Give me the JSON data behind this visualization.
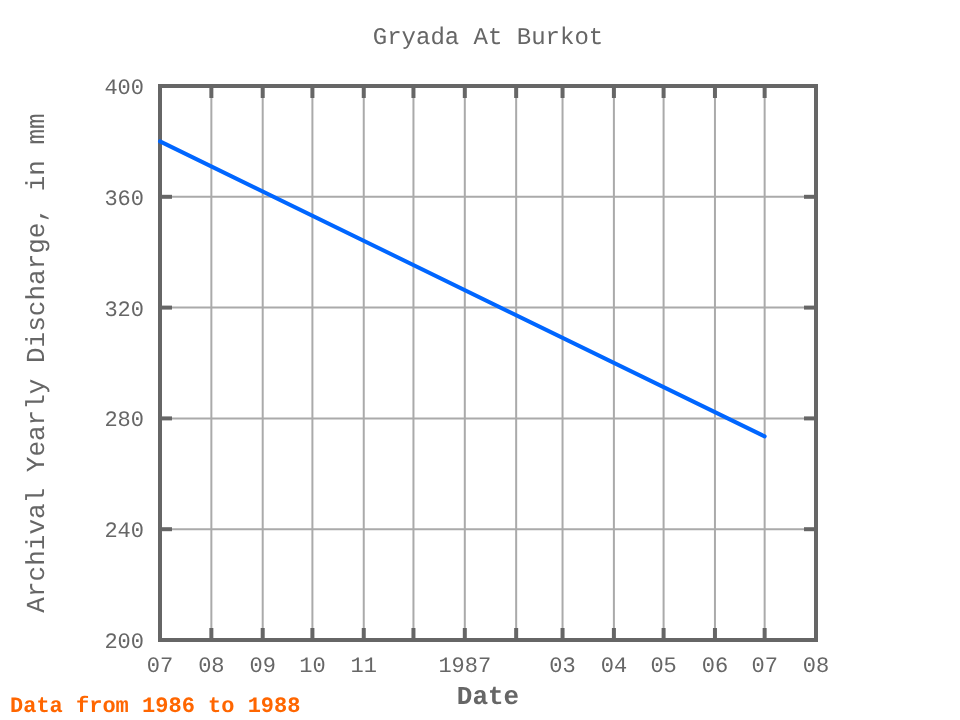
{
  "chart_data": {
    "type": "line",
    "title": "Gryada At Burkot",
    "xlabel": "Date",
    "ylabel": "Archival Yearly Discharge, in mm",
    "annotations": [
      "Data from 1986 to 1988"
    ],
    "x": [
      "1986-07-01",
      "1987-07-01"
    ],
    "series": [
      {
        "color": "#0066ff",
        "values": [
          380,
          273.5
        ]
      }
    ],
    "xlim": [
      "1986-07-01",
      "1987-08-01"
    ],
    "xticks": [
      {
        "value": "1986-07-01",
        "label": "07"
      },
      {
        "value": "1986-08-01",
        "label": "08"
      },
      {
        "value": "1986-09-01",
        "label": "09"
      },
      {
        "value": "1986-10-01",
        "label": "10"
      },
      {
        "value": "1986-11-01",
        "label": "11"
      },
      {
        "value": "1986-12-01",
        "label": null
      },
      {
        "value": "1987-01-01",
        "label": "1987"
      },
      {
        "value": "1987-02-01",
        "label": null
      },
      {
        "value": "1987-03-01",
        "label": "03"
      },
      {
        "value": "1987-04-01",
        "label": "04"
      },
      {
        "value": "1987-05-01",
        "label": "05"
      },
      {
        "value": "1987-06-01",
        "label": "06"
      },
      {
        "value": "1987-07-01",
        "label": "07"
      },
      {
        "value": "1987-08-01",
        "label": "08"
      }
    ],
    "ylim": [
      200,
      400
    ],
    "yticks": [
      200,
      240,
      280,
      320,
      360,
      400
    ],
    "grid": true,
    "marker": "none",
    "line_style": "solid"
  }
}
